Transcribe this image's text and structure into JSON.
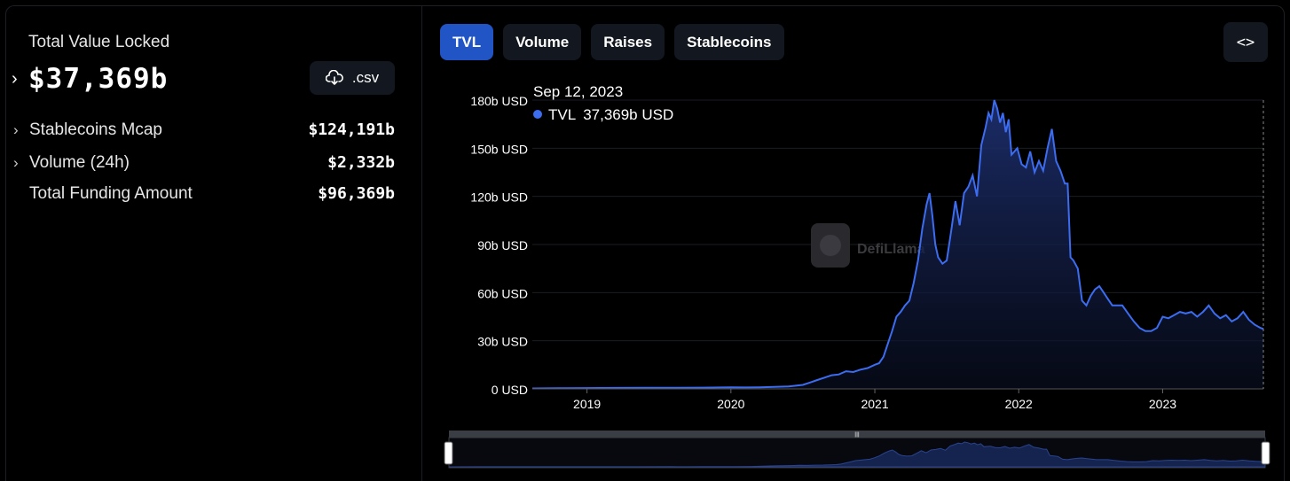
{
  "summary": {
    "tvl_label": "Total Value Locked",
    "tvl_value": "$37,369b",
    "csv_label": ".csv",
    "rows": [
      {
        "label": "Stablecoins Mcap",
        "value": "$124,191b",
        "expandable": true
      },
      {
        "label": "Volume (24h)",
        "value": "$2,332b",
        "expandable": true
      },
      {
        "label": "Total Funding Amount",
        "value": "$96,369b",
        "expandable": false
      }
    ]
  },
  "tabs": [
    {
      "label": "TVL",
      "active": true
    },
    {
      "label": "Volume",
      "active": false
    },
    {
      "label": "Raises",
      "active": false
    },
    {
      "label": "Stablecoins",
      "active": false
    }
  ],
  "embed_label": "<>",
  "watermark": "DefiLlama",
  "tooltip": {
    "date": "Sep 12, 2023",
    "series": "TVL",
    "value": "37,369b USD"
  },
  "chart_data": {
    "type": "area",
    "title": "",
    "xlabel": "",
    "ylabel": "",
    "ylim": [
      0,
      180
    ],
    "yunit": "b USD",
    "yticks": [
      {
        "v": 0,
        "label": "0 USD"
      },
      {
        "v": 30,
        "label": "30b USD"
      },
      {
        "v": 60,
        "label": "60b USD"
      },
      {
        "v": 90,
        "label": "90b USD"
      },
      {
        "v": 120,
        "label": "120b USD"
      },
      {
        "v": 150,
        "label": "150b USD"
      },
      {
        "v": 180,
        "label": "180b USD"
      }
    ],
    "xticks": [
      {
        "v": 2019.0,
        "label": "2019"
      },
      {
        "v": 2020.0,
        "label": "2020"
      },
      {
        "v": 2021.0,
        "label": "2021"
      },
      {
        "v": 2022.0,
        "label": "2022"
      },
      {
        "v": 2023.0,
        "label": "2023"
      }
    ],
    "xlim": [
      2018.62,
      2023.7
    ],
    "color": "#3c6cf0",
    "series": [
      {
        "name": "TVL",
        "x": [
          2018.62,
          2018.8,
          2019.0,
          2019.2,
          2019.4,
          2019.6,
          2019.8,
          2020.0,
          2020.1,
          2020.2,
          2020.3,
          2020.4,
          2020.5,
          2020.55,
          2020.6,
          2020.65,
          2020.7,
          2020.75,
          2020.8,
          2020.85,
          2020.9,
          2020.95,
          2021.0,
          2021.03,
          2021.06,
          2021.09,
          2021.12,
          2021.15,
          2021.18,
          2021.21,
          2021.24,
          2021.27,
          2021.3,
          2021.33,
          2021.36,
          2021.38,
          2021.4,
          2021.42,
          2021.44,
          2021.47,
          2021.5,
          2021.53,
          2021.56,
          2021.59,
          2021.62,
          2021.65,
          2021.68,
          2021.71,
          2021.74,
          2021.77,
          2021.79,
          2021.81,
          2021.83,
          2021.85,
          2021.87,
          2021.89,
          2021.91,
          2021.93,
          2021.95,
          2021.97,
          2021.99,
          2022.02,
          2022.05,
          2022.08,
          2022.11,
          2022.14,
          2022.17,
          2022.2,
          2022.23,
          2022.26,
          2022.29,
          2022.32,
          2022.34,
          2022.36,
          2022.38,
          2022.41,
          2022.44,
          2022.47,
          2022.5,
          2022.53,
          2022.56,
          2022.59,
          2022.62,
          2022.65,
          2022.68,
          2022.72,
          2022.76,
          2022.8,
          2022.84,
          2022.88,
          2022.92,
          2022.96,
          2023.0,
          2023.04,
          2023.08,
          2023.12,
          2023.16,
          2023.2,
          2023.24,
          2023.28,
          2023.32,
          2023.36,
          2023.4,
          2023.44,
          2023.48,
          2023.52,
          2023.56,
          2023.6,
          2023.64,
          2023.68,
          2023.7
        ],
        "values": [
          0.3,
          0.4,
          0.5,
          0.6,
          0.7,
          0.7,
          0.8,
          1.0,
          0.9,
          1.0,
          1.2,
          1.5,
          2.5,
          4,
          5.5,
          7,
          8.5,
          9,
          11,
          10.5,
          12,
          13,
          15,
          16,
          20,
          28,
          36,
          45,
          48,
          52,
          55,
          66,
          80,
          100,
          115,
          122,
          108,
          90,
          82,
          78,
          80,
          98,
          117,
          102,
          122,
          126,
          133,
          120,
          152,
          163,
          172,
          168,
          180,
          175,
          166,
          172,
          160,
          168,
          146,
          148,
          150,
          140,
          138,
          148,
          135,
          142,
          136,
          150,
          162,
          142,
          136,
          128,
          128,
          82,
          80,
          75,
          55,
          52,
          58,
          62,
          64,
          60,
          56,
          52,
          52,
          52,
          47,
          42,
          38,
          36,
          36,
          38,
          45,
          44,
          46,
          48,
          47,
          48,
          45,
          48,
          52,
          47,
          44,
          46,
          42,
          44,
          48,
          43,
          40,
          38,
          37.4
        ]
      }
    ]
  },
  "brush_label": "|||"
}
